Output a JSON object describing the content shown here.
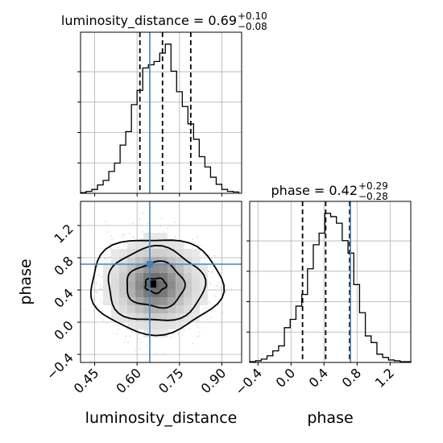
{
  "chart_data": {
    "type": "corner",
    "parameters": [
      "luminosity_distance",
      "phase"
    ],
    "truths": {
      "luminosity_distance": 0.645,
      "phase": 0.72
    },
    "panels": {
      "luminosity_distance_hist": {
        "type": "step-histogram",
        "title_text": "luminosity_distance = 0.69",
        "title_plus": "+0.10",
        "title_minus": "−0.08",
        "xlim": [
          0.4,
          0.97
        ],
        "bin_edges": [
          0.4,
          0.42,
          0.44,
          0.46,
          0.48,
          0.5,
          0.52,
          0.54,
          0.56,
          0.58,
          0.6,
          0.62,
          0.64,
          0.66,
          0.68,
          0.7,
          0.72,
          0.74,
          0.76,
          0.78,
          0.8,
          0.82,
          0.84,
          0.86,
          0.88,
          0.9,
          0.92,
          0.94,
          0.96
        ],
        "counts": [
          1,
          3,
          6,
          13,
          20,
          34,
          47,
          75,
          96,
          138,
          160,
          195,
          200,
          205,
          218,
          232,
          190,
          158,
          135,
          108,
          84,
          57,
          41,
          25,
          14,
          6,
          3,
          2
        ],
        "quantiles": [
          0.61,
          0.69,
          0.79
        ],
        "truth": 0.645,
        "xticks": [
          0.45,
          0.6,
          0.75,
          0.9
        ],
        "grid": true
      },
      "phase_hist": {
        "type": "step-histogram",
        "title_text": "phase = 0.42",
        "title_plus": "+0.29",
        "title_minus": "−0.28",
        "xlim": [
          -0.5,
          1.45
        ],
        "bin_edges": [
          -0.5,
          -0.43,
          -0.36,
          -0.29,
          -0.22,
          -0.15,
          -0.08,
          -0.01,
          0.06,
          0.13,
          0.2,
          0.27,
          0.34,
          0.41,
          0.48,
          0.55,
          0.62,
          0.69,
          0.76,
          0.83,
          0.9,
          0.97,
          1.04,
          1.11,
          1.18,
          1.25,
          1.32,
          1.39,
          1.45
        ],
        "counts": [
          1,
          2,
          4,
          8,
          14,
          20,
          42,
          52,
          68,
          82,
          113,
          142,
          156,
          180,
          176,
          168,
          147,
          132,
          94,
          60,
          32,
          24,
          10,
          6,
          3,
          2,
          1,
          1
        ],
        "quantiles": [
          0.14,
          0.42,
          0.71
        ],
        "truth": 0.72,
        "xticks": [
          -0.4,
          0.0,
          0.4,
          0.8,
          1.2
        ],
        "grid": true
      },
      "joint": {
        "type": "2d-density-contour",
        "xlim": [
          0.4,
          0.97
        ],
        "ylim": [
          -0.5,
          1.5
        ],
        "xticks": [
          0.45,
          0.6,
          0.75,
          0.9
        ],
        "yticks": [
          -0.4,
          0.0,
          0.4,
          0.8,
          1.2
        ],
        "xlabel": "luminosity_distance",
        "ylabel": "phase",
        "truth": [
          0.645,
          0.72
        ],
        "center": [
          0.665,
          0.46
        ],
        "grid": true
      }
    },
    "xlabels": [
      "luminosity_distance",
      "phase"
    ],
    "ylabel": "phase",
    "truth_color": "#4682b4",
    "line_color": "#000000",
    "grid_color": "#b0b0b0"
  }
}
